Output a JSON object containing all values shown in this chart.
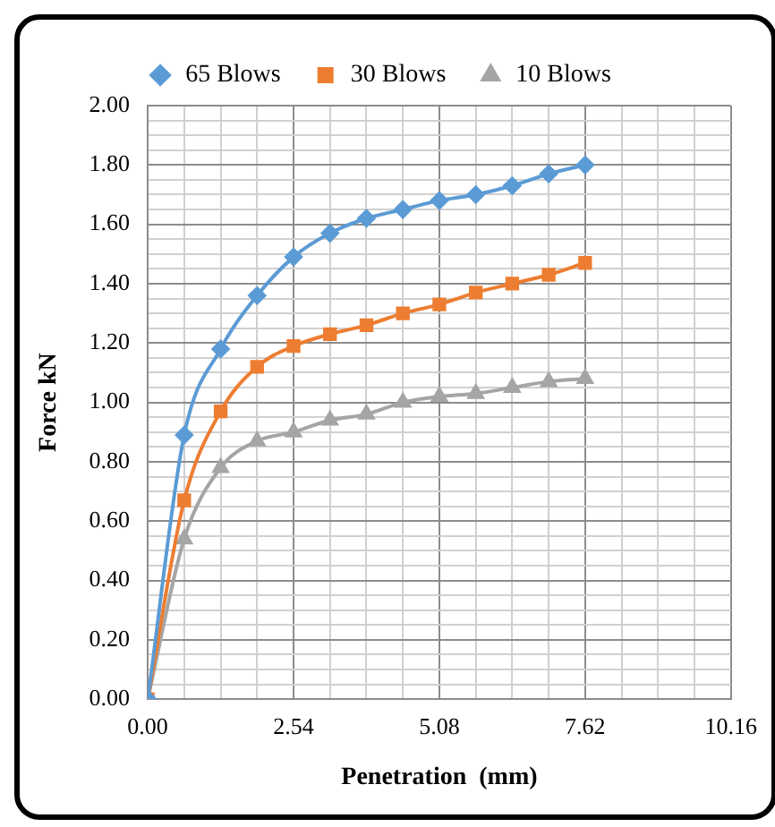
{
  "chart_data": {
    "type": "line",
    "xlabel": "Penetration  (mm)",
    "ylabel": "Force kN",
    "x": [
      0,
      0.635,
      1.27,
      1.905,
      2.54,
      3.175,
      3.81,
      4.445,
      5.08,
      5.715,
      6.35,
      6.985,
      7.62
    ],
    "series": [
      {
        "name": "65 Blows",
        "color": "#5b9bd5",
        "marker": "diamond",
        "values": [
          0,
          0.89,
          1.18,
          1.36,
          1.49,
          1.57,
          1.62,
          1.65,
          1.68,
          1.7,
          1.73,
          1.77,
          1.8
        ]
      },
      {
        "name": "30 Blows",
        "color": "#ed7d31",
        "marker": "square",
        "values": [
          0,
          0.67,
          0.97,
          1.12,
          1.19,
          1.23,
          1.26,
          1.3,
          1.33,
          1.37,
          1.4,
          1.43,
          1.47
        ]
      },
      {
        "name": "10 Blows",
        "color": "#a5a5a5",
        "marker": "triangle",
        "values": [
          0,
          0.54,
          0.78,
          0.87,
          0.9,
          0.94,
          0.96,
          1.0,
          1.02,
          1.03,
          1.05,
          1.07,
          1.08
        ]
      }
    ],
    "xlim": [
      0,
      10.16
    ],
    "xticks": [
      {
        "value": 0,
        "label": "0.00"
      },
      {
        "value": 0.635,
        "label": null
      },
      {
        "value": 1.27,
        "label": null
      },
      {
        "value": 1.905,
        "label": null
      },
      {
        "value": 2.54,
        "label": "2.54"
      },
      {
        "value": 3.175,
        "label": null
      },
      {
        "value": 3.81,
        "label": null
      },
      {
        "value": 4.445,
        "label": null
      },
      {
        "value": 5.08,
        "label": "5.08"
      },
      {
        "value": 5.715,
        "label": null
      },
      {
        "value": 6.35,
        "label": null
      },
      {
        "value": 6.985,
        "label": null
      },
      {
        "value": 7.62,
        "label": "7.62"
      },
      {
        "value": 8.255,
        "label": null
      },
      {
        "value": 8.89,
        "label": null
      },
      {
        "value": 9.525,
        "label": null
      },
      {
        "value": 10.16,
        "label": "10.16"
      }
    ],
    "ylim": [
      0,
      2
    ],
    "yticks": [
      {
        "value": 0,
        "label": "0.00"
      },
      {
        "value": 0.05,
        "label": null
      },
      {
        "value": 0.1,
        "label": null
      },
      {
        "value": 0.15,
        "label": null
      },
      {
        "value": 0.2,
        "label": "0.20"
      },
      {
        "value": 0.25,
        "label": null
      },
      {
        "value": 0.3,
        "label": null
      },
      {
        "value": 0.35,
        "label": null
      },
      {
        "value": 0.4,
        "label": "0.40"
      },
      {
        "value": 0.45,
        "label": null
      },
      {
        "value": 0.5,
        "label": null
      },
      {
        "value": 0.55,
        "label": null
      },
      {
        "value": 0.6,
        "label": "0.60"
      },
      {
        "value": 0.65,
        "label": null
      },
      {
        "value": 0.7,
        "label": null
      },
      {
        "value": 0.75,
        "label": null
      },
      {
        "value": 0.8,
        "label": "0.80"
      },
      {
        "value": 0.85,
        "label": null
      },
      {
        "value": 0.9,
        "label": null
      },
      {
        "value": 0.95,
        "label": null
      },
      {
        "value": 1,
        "label": "1.00"
      },
      {
        "value": 1.05,
        "label": null
      },
      {
        "value": 1.1,
        "label": null
      },
      {
        "value": 1.15,
        "label": null
      },
      {
        "value": 1.2,
        "label": "1.20"
      },
      {
        "value": 1.25,
        "label": null
      },
      {
        "value": 1.3,
        "label": null
      },
      {
        "value": 1.35,
        "label": null
      },
      {
        "value": 1.4,
        "label": "1.40"
      },
      {
        "value": 1.45,
        "label": null
      },
      {
        "value": 1.5,
        "label": null
      },
      {
        "value": 1.55,
        "label": null
      },
      {
        "value": 1.6,
        "label": "1.60"
      },
      {
        "value": 1.65,
        "label": null
      },
      {
        "value": 1.7,
        "label": null
      },
      {
        "value": 1.75,
        "label": null
      },
      {
        "value": 1.8,
        "label": "1.80"
      },
      {
        "value": 1.85,
        "label": null
      },
      {
        "value": 1.9,
        "label": null
      },
      {
        "value": 1.95,
        "label": null
      },
      {
        "value": 2,
        "label": "2.00"
      }
    ],
    "grid": true,
    "legend": "top",
    "line_style": "solid"
  }
}
